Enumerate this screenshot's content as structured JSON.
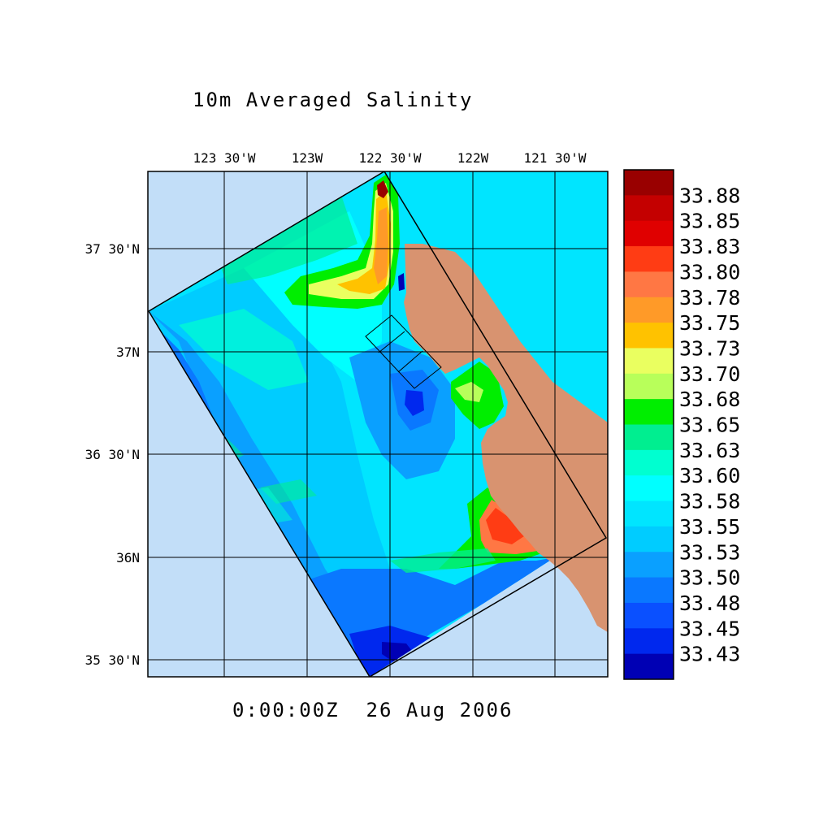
{
  "title": "10m Averaged Salinity",
  "timestamp": "0:00:00Z  26 Aug 2006",
  "longitude_ticks": [
    "123 30'W",
    "123W",
    "122 30'W",
    "122W",
    "121 30'W"
  ],
  "latitude_ticks": [
    "37 30'N",
    "37N",
    "36 30'N",
    "36N",
    "35 30'N"
  ],
  "colorbar": {
    "labels": [
      "33.88",
      "33.85",
      "33.83",
      "33.80",
      "33.78",
      "33.75",
      "33.73",
      "33.70",
      "33.68",
      "33.65",
      "33.63",
      "33.60",
      "33.58",
      "33.55",
      "33.53",
      "33.50",
      "33.48",
      "33.45",
      "33.43"
    ],
    "colors": [
      "#990000",
      "#c40000",
      "#e00000",
      "#ff3c14",
      "#ff7744",
      "#ff9a28",
      "#ffc200",
      "#eaff60",
      "#b8ff5a",
      "#00ee00",
      "#00ee90",
      "#00ffd0",
      "#00ffff",
      "#00e5ff",
      "#00ccff",
      "#0aa0ff",
      "#0a78ff",
      "#0a50ff",
      "#0028ee",
      "#0000b4"
    ]
  },
  "colors": {
    "ocean": "#c2def8",
    "land": "#d89370",
    "water_inland": "#aad2ee"
  }
}
